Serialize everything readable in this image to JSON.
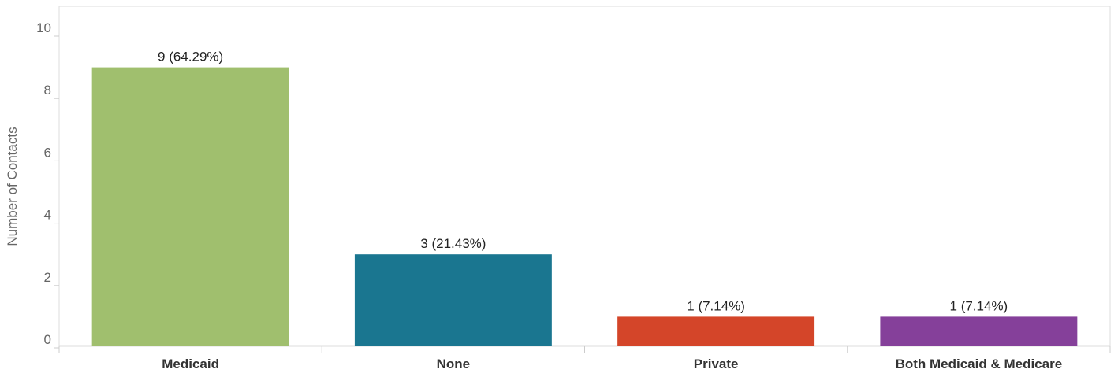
{
  "chart_data": {
    "type": "bar",
    "title": "",
    "xlabel": "",
    "ylabel": "Number of Contacts",
    "categories": [
      "Medicaid",
      "None",
      "Private",
      "Both Medicaid & Medicare"
    ],
    "values": [
      9,
      3,
      1,
      1
    ],
    "data_labels": [
      "9 (64.29%)",
      "3 (21.43%)",
      "1 (7.14%)",
      "1 (7.14%)"
    ],
    "colors": [
      "#a0bf6e",
      "#1a7690",
      "#d44529",
      "#85409a"
    ],
    "ylim": [
      0,
      10
    ],
    "yticks": [
      0,
      2,
      4,
      6,
      8,
      10
    ],
    "grid": false,
    "legend": "none"
  }
}
